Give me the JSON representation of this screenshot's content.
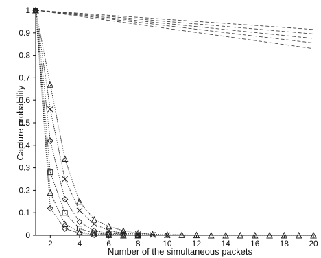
{
  "chart_data": {
    "type": "line",
    "title": "",
    "xlabel": "Number of the simultaneous packets",
    "ylabel": "Capture probability",
    "xlim": [
      1,
      20
    ],
    "ylim": [
      0,
      1
    ],
    "xticks": [
      2,
      4,
      6,
      8,
      10,
      12,
      14,
      16,
      18,
      20
    ],
    "yticks": [
      0,
      0.1,
      0.2,
      0.3,
      0.4,
      0.5,
      0.6,
      0.7,
      0.8,
      0.9,
      1
    ],
    "ytick_labels": [
      "0",
      "0.1",
      "0.2",
      "0.3",
      "0.4",
      "0.5",
      "0.6",
      "0.7",
      "0.8",
      "0.9",
      "1"
    ],
    "grid": false,
    "legend": "none",
    "series": [
      {
        "marker": "none",
        "line": "dashed",
        "x": [
          1,
          20
        ],
        "y": [
          1.0,
          0.915
        ]
      },
      {
        "marker": "none",
        "line": "dashed",
        "x": [
          1,
          20
        ],
        "y": [
          1.0,
          0.895
        ]
      },
      {
        "marker": "none",
        "line": "dashed",
        "x": [
          1,
          20
        ],
        "y": [
          1.0,
          0.875
        ]
      },
      {
        "marker": "none",
        "line": "dashed",
        "x": [
          1,
          20
        ],
        "y": [
          1.0,
          0.855
        ]
      },
      {
        "marker": "none",
        "line": "dashed",
        "x": [
          1,
          20
        ],
        "y": [
          1.0,
          0.83
        ]
      },
      {
        "marker": "triangle",
        "line": "dotted",
        "x": [
          1,
          2,
          3,
          4,
          5,
          6,
          7,
          8,
          9,
          10,
          11,
          12,
          13,
          14,
          15,
          16,
          17,
          18,
          19,
          20
        ],
        "y": [
          1.0,
          0.67,
          0.34,
          0.15,
          0.07,
          0.04,
          0.02,
          0.01,
          0.005,
          0.003,
          0.002,
          0.001,
          0,
          0,
          0,
          0,
          0,
          0,
          0,
          0
        ]
      },
      {
        "marker": "x",
        "line": "dotted",
        "x": [
          1,
          2,
          3,
          4,
          5,
          6,
          7,
          8,
          9,
          10
        ],
        "y": [
          1.0,
          0.56,
          0.25,
          0.11,
          0.05,
          0.02,
          0.01,
          0.005,
          0.002,
          0
        ]
      },
      {
        "marker": "diamond",
        "line": "dotted",
        "x": [
          1,
          2,
          3,
          4,
          5,
          6,
          7,
          8
        ],
        "y": [
          1.0,
          0.42,
          0.16,
          0.06,
          0.02,
          0.01,
          0.005,
          0
        ]
      },
      {
        "marker": "square",
        "line": "dotted",
        "x": [
          1,
          2,
          3,
          4,
          5,
          6,
          7,
          8
        ],
        "y": [
          1.0,
          0.28,
          0.1,
          0.03,
          0.01,
          0.005,
          0.002,
          0
        ]
      },
      {
        "marker": "triangle",
        "line": "dotted",
        "x": [
          1,
          2,
          3,
          4,
          5,
          6,
          7,
          8
        ],
        "y": [
          1.0,
          0.19,
          0.05,
          0.015,
          0.005,
          0.002,
          0,
          0
        ]
      },
      {
        "marker": "diamond",
        "line": "dotted",
        "x": [
          1,
          2,
          3,
          4,
          5,
          6
        ],
        "y": [
          1.0,
          0.12,
          0.03,
          0.01,
          0.002,
          0
        ]
      }
    ]
  }
}
